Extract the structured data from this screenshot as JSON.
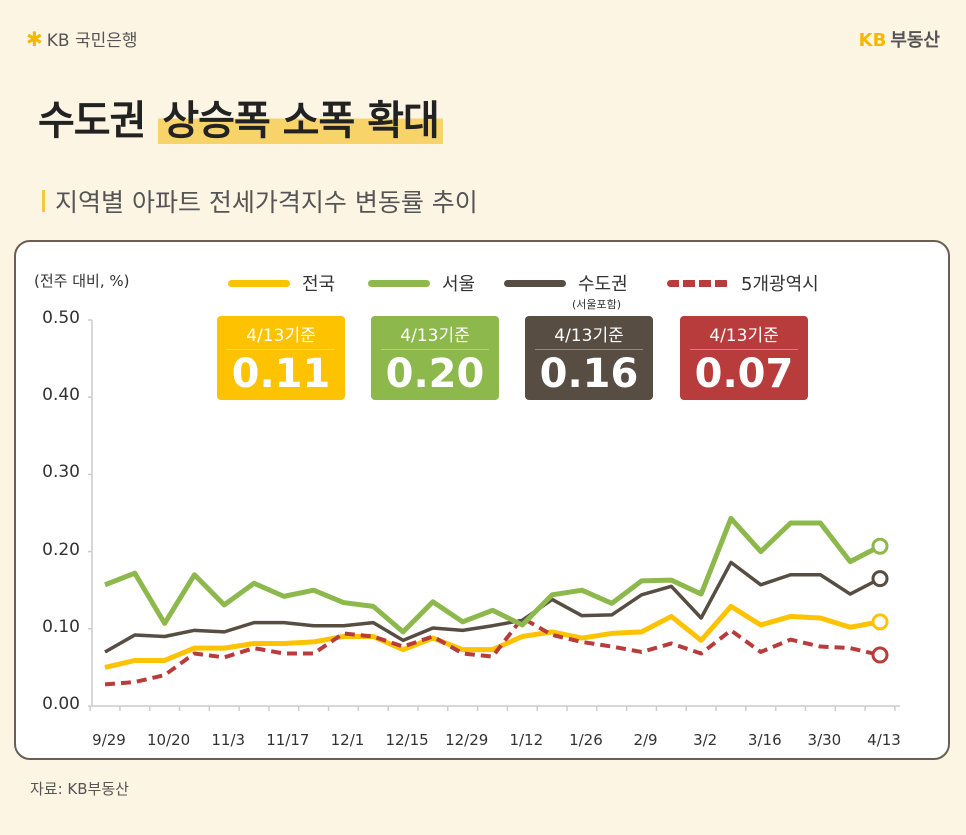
{
  "header": {
    "bank_logo": "KB 국민은행",
    "brand_kb": "KB",
    "brand_name": "부동산",
    "title_plain": "수도권",
    "title_highlight": "상승폭 소폭 확대",
    "subtitle": "지역별 아파트 전세가격지수 변동률 추이"
  },
  "legend_note": "(서울포함)",
  "badges": [
    {
      "date": "4/13기준",
      "value": "0.11",
      "color": "#fdc300"
    },
    {
      "date": "4/13기준",
      "value": "0.20",
      "color": "#8cb84c"
    },
    {
      "date": "4/13기준",
      "value": "0.16",
      "color": "#574d42"
    },
    {
      "date": "4/13기준",
      "value": "0.07",
      "color": "#b83c3c"
    }
  ],
  "source": "자료: KB부동산",
  "chart_data": {
    "type": "line",
    "ylabel": "(전주 대비, %)",
    "ylim": [
      0,
      0.5
    ],
    "yticks": [
      "0.00",
      "0.10",
      "0.20",
      "0.30",
      "0.40",
      "0.50"
    ],
    "x": [
      "9/29",
      "",
      "10/20",
      "",
      "11/3",
      "",
      "11/17",
      "",
      "12/1",
      "",
      "12/15",
      "",
      "12/29",
      "",
      "1/12",
      "",
      "1/26",
      "",
      "2/9",
      "",
      "3/2",
      "",
      "3/16",
      "",
      "3/30",
      "",
      "4/13"
    ],
    "grid": false,
    "legend": "top",
    "series": [
      {
        "name": "전국",
        "color": "#fdc300",
        "style": "solid",
        "values": [
          0.05,
          0.059,
          0.059,
          0.075,
          0.075,
          0.081,
          0.081,
          0.083,
          0.09,
          0.09,
          0.073,
          0.088,
          0.073,
          0.073,
          0.09,
          0.096,
          0.088,
          0.094,
          0.096,
          0.116,
          0.085,
          0.129,
          0.105,
          0.116,
          0.114,
          0.102,
          0.109
        ]
      },
      {
        "name": "서울",
        "color": "#8cb84c",
        "style": "solid",
        "values": [
          0.157,
          0.172,
          0.107,
          0.17,
          0.131,
          0.159,
          0.142,
          0.15,
          0.134,
          0.129,
          0.096,
          0.135,
          0.109,
          0.124,
          0.105,
          0.144,
          0.15,
          0.133,
          0.162,
          0.163,
          0.145,
          0.243,
          0.2,
          0.237,
          0.237,
          0.187,
          0.207
        ]
      },
      {
        "name": "수도권",
        "color": "#574d42",
        "style": "solid",
        "values": [
          0.07,
          0.092,
          0.09,
          0.098,
          0.096,
          0.108,
          0.108,
          0.104,
          0.104,
          0.108,
          0.085,
          0.101,
          0.098,
          0.104,
          0.111,
          0.138,
          0.117,
          0.118,
          0.144,
          0.155,
          0.114,
          0.186,
          0.157,
          0.17,
          0.17,
          0.145,
          0.165
        ]
      },
      {
        "name": "5개광역시",
        "color": "#b83c3c",
        "style": "dashed",
        "values": [
          0.028,
          0.031,
          0.04,
          0.068,
          0.063,
          0.075,
          0.068,
          0.068,
          0.094,
          0.09,
          0.077,
          0.09,
          0.068,
          0.064,
          0.114,
          0.092,
          0.083,
          0.077,
          0.07,
          0.081,
          0.068,
          0.098,
          0.07,
          0.086,
          0.077,
          0.075,
          0.066
        ]
      }
    ]
  }
}
